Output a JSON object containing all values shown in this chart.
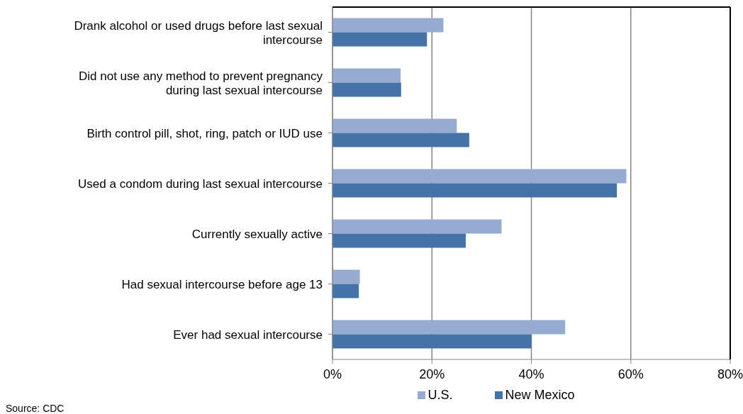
{
  "chart_data": {
    "type": "bar",
    "orientation": "horizontal",
    "categories": [
      "Drank alcohol or used drugs before last sexual intercourse",
      "Did not use any method to prevent pregnancy during last sexual intercourse",
      "Birth control pill, shot, ring, patch or IUD use",
      "Used a condom during last sexual intercourse",
      "Currently sexually active",
      "Had sexual intercourse before age 13",
      "Ever had sexual intercourse"
    ],
    "series": [
      {
        "name": "U.S.",
        "color": "#95abd2",
        "values": [
          22.3,
          13.7,
          25.0,
          59.1,
          34.0,
          5.5,
          46.8
        ]
      },
      {
        "name": "New Mexico",
        "color": "#4572a7",
        "values": [
          19.0,
          13.8,
          27.5,
          57.2,
          26.8,
          5.3,
          40.0
        ]
      }
    ],
    "xlim": [
      0,
      80
    ],
    "xticks": [
      {
        "value": 0,
        "label": "0%"
      },
      {
        "value": 20,
        "label": "20%"
      },
      {
        "value": 40,
        "label": "40%"
      },
      {
        "value": 60,
        "label": "60%"
      },
      {
        "value": 80,
        "label": "80%"
      }
    ],
    "grid": "x",
    "legend": "bottom",
    "annotations": [
      "Source: CDC"
    ]
  }
}
